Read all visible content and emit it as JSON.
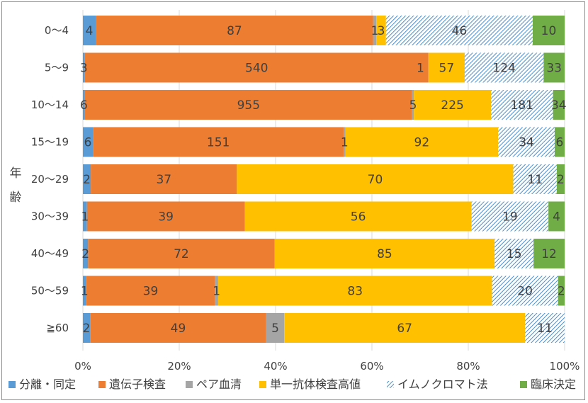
{
  "chart_data": {
    "type": "bar",
    "orientation": "horizontal",
    "stacked": "percent",
    "ylabel": "年齢",
    "categories": [
      "0〜4",
      "5〜9",
      "10〜14",
      "15〜19",
      "20〜29",
      "30〜39",
      "40〜49",
      "50〜59",
      "≧60"
    ],
    "series": [
      {
        "name": "分離・同定",
        "color": "#5b9bd5",
        "pattern": "solid",
        "values": [
          4,
          3,
          6,
          6,
          2,
          1,
          2,
          1,
          2
        ]
      },
      {
        "name": "遺伝子検査",
        "color": "#ed7d31",
        "pattern": "solid",
        "values": [
          87,
          540,
          955,
          151,
          37,
          39,
          72,
          39,
          49
        ]
      },
      {
        "name": "ペア血清",
        "color": "#a5a5a5",
        "pattern": "solid",
        "values": [
          1,
          0,
          5,
          1,
          0,
          0,
          0,
          1,
          5
        ]
      },
      {
        "name": "単一抗体検査高値",
        "color": "#ffc000",
        "pattern": "solid",
        "values": [
          3,
          57,
          225,
          92,
          70,
          56,
          85,
          83,
          67
        ]
      },
      {
        "name": "イムノクロマト法",
        "color": "#4a8fd0",
        "pattern": "hatched",
        "values": [
          46,
          124,
          181,
          34,
          11,
          19,
          15,
          20,
          11
        ]
      },
      {
        "name": "臨床決定",
        "color": "#70ad47",
        "pattern": "solid",
        "values": [
          10,
          33,
          34,
          6,
          2,
          4,
          12,
          2,
          0
        ]
      }
    ],
    "data_labels": [
      [
        "4",
        "87",
        "1",
        "3",
        "46",
        "10"
      ],
      [
        "3",
        "540",
        "",
        "57",
        "124",
        "33"
      ],
      [
        "6",
        "955",
        "5",
        "225",
        "181",
        "34"
      ],
      [
        "6",
        "151",
        "1",
        "92",
        "34",
        "6"
      ],
      [
        "2",
        "37",
        "",
        "70",
        "11",
        "2"
      ],
      [
        "1",
        "39",
        "",
        "56",
        "19",
        "4"
      ],
      [
        "2",
        "72",
        "",
        "85",
        "15",
        "12"
      ],
      [
        "1",
        "39",
        "1",
        "83",
        "20",
        "2"
      ],
      [
        "2",
        "49",
        "5",
        "67",
        "11",
        ""
      ]
    ],
    "extra_labels": [
      {
        "row": 1,
        "series": 3,
        "text": "1"
      }
    ],
    "x_ticks": [
      "0%",
      "20%",
      "40%",
      "60%",
      "80%",
      "100%"
    ],
    "xlim": [
      0,
      100
    ],
    "grid": "vertical",
    "legend_position": "bottom"
  }
}
